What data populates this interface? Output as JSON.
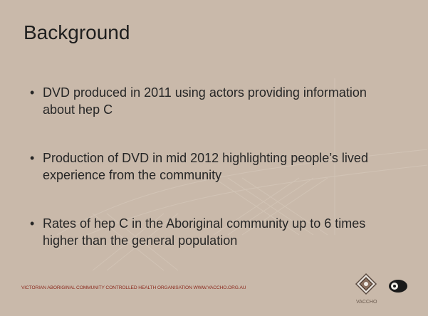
{
  "header": {
    "title": "Background"
  },
  "bullets": [
    "DVD produced in 2011 using actors providing information about hep C",
    "Production of DVD in mid 2012 highlighting people’s lived experience from the community",
    "Rates of hep C in the Aboriginal community up to 6 times higher than the general population"
  ],
  "footer": {
    "text": "VICTORIAN ABORIGINAL COMMUNITY CONTROLLED HEALTH ORGANISATION WWW.VACCHO.ORG.AU",
    "logo_label": "VACCHO"
  }
}
